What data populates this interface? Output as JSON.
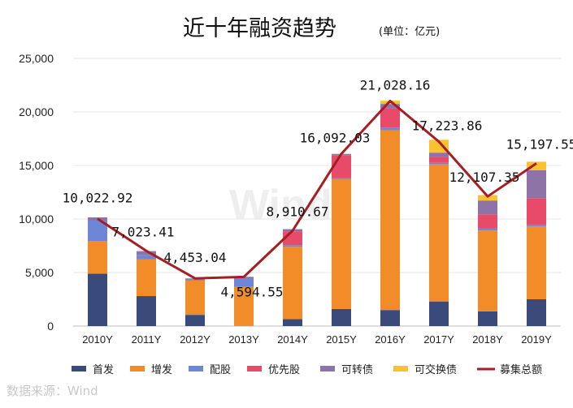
{
  "chart_data": {
    "type": "bar",
    "stacked": true,
    "title": "近十年融资趋势",
    "unit_note": "(单位：亿元)",
    "source": "数据来源：Wind",
    "watermark": "Wind",
    "categories": [
      "2010Y",
      "2011Y",
      "2012Y",
      "2013Y",
      "2014Y",
      "2015Y",
      "2016Y",
      "2017Y",
      "2018Y",
      "2019Y"
    ],
    "ylim": [
      0,
      25000
    ],
    "yticks": [
      0,
      5000,
      10000,
      15000,
      20000,
      25000
    ],
    "ytick_labels": [
      "0",
      "5,000",
      "10,000",
      "15,000",
      "20,000",
      "25,000"
    ],
    "grid": true,
    "legend_position": "bottom",
    "series": [
      {
        "name": "首发",
        "color": "#3a4a7a",
        "values": [
          4900,
          2800,
          1050,
          0,
          650,
          1600,
          1500,
          2300,
          1380,
          2500
        ]
      },
      {
        "name": "增发",
        "color": "#f28c28",
        "values": [
          3050,
          3450,
          3200,
          3650,
          6750,
          12150,
          16800,
          12800,
          7550,
          6800
        ]
      },
      {
        "name": "配股",
        "color": "#6f86d6",
        "values": [
          1900,
          400,
          100,
          750,
          150,
          80,
          250,
          150,
          200,
          150
        ]
      },
      {
        "name": "优先股",
        "color": "#e84a6a",
        "values": [
          0,
          0,
          0,
          0,
          1300,
          2100,
          1800,
          550,
          1300,
          2500
        ]
      },
      {
        "name": "可转债",
        "color": "#8e73a8",
        "values": [
          300,
          350,
          100,
          200,
          200,
          150,
          400,
          400,
          1300,
          2600
        ]
      },
      {
        "name": "可交换债",
        "color": "#f9c22e",
        "values": [
          0,
          0,
          0,
          0,
          0,
          0,
          300,
          1200,
          500,
          800
        ]
      }
    ],
    "total_series": {
      "name": "募集总额",
      "color": "#a51e22",
      "values": [
        10022.92,
        7023.41,
        4453.04,
        4594.55,
        8910.67,
        16092.03,
        21028.16,
        17223.86,
        12107.35,
        15197.55
      ],
      "labels": [
        "10,022.92",
        "7,023.41",
        "4,453.04",
        "4,594.55",
        "8,910.67",
        "16,092.03",
        "21,028.16",
        "17,223.86",
        "12,107.35",
        "15,197.55"
      ]
    },
    "legend": [
      "首发",
      "增发",
      "配股",
      "优先股",
      "可转债",
      "可交换债",
      "募集总额"
    ]
  }
}
